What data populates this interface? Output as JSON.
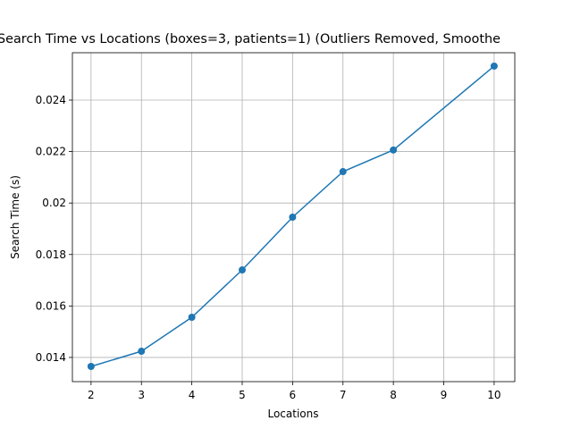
{
  "chart_data": {
    "type": "line",
    "title": "Search Time vs Locations (boxes=3, patients=1) (Outliers Removed, Smoothe",
    "xlabel": "Locations",
    "ylabel": "Search Time (s)",
    "x": [
      2,
      3,
      4,
      5,
      6,
      7,
      8,
      10
    ],
    "series": [
      {
        "color": "#1f77b4",
        "values": [
          0.01365,
          0.01424,
          0.01556,
          0.0174,
          0.01945,
          0.02122,
          0.02206,
          0.02532
        ]
      }
    ],
    "xlim": [
      1.63,
      10.41
    ],
    "ylim": [
      0.01306,
      0.02584
    ],
    "xticks": [
      2,
      3,
      4,
      5,
      6,
      7,
      8,
      9,
      10
    ],
    "yticks": [
      0.014,
      0.016,
      0.018,
      0.02,
      0.022,
      0.024
    ],
    "grid": true
  }
}
